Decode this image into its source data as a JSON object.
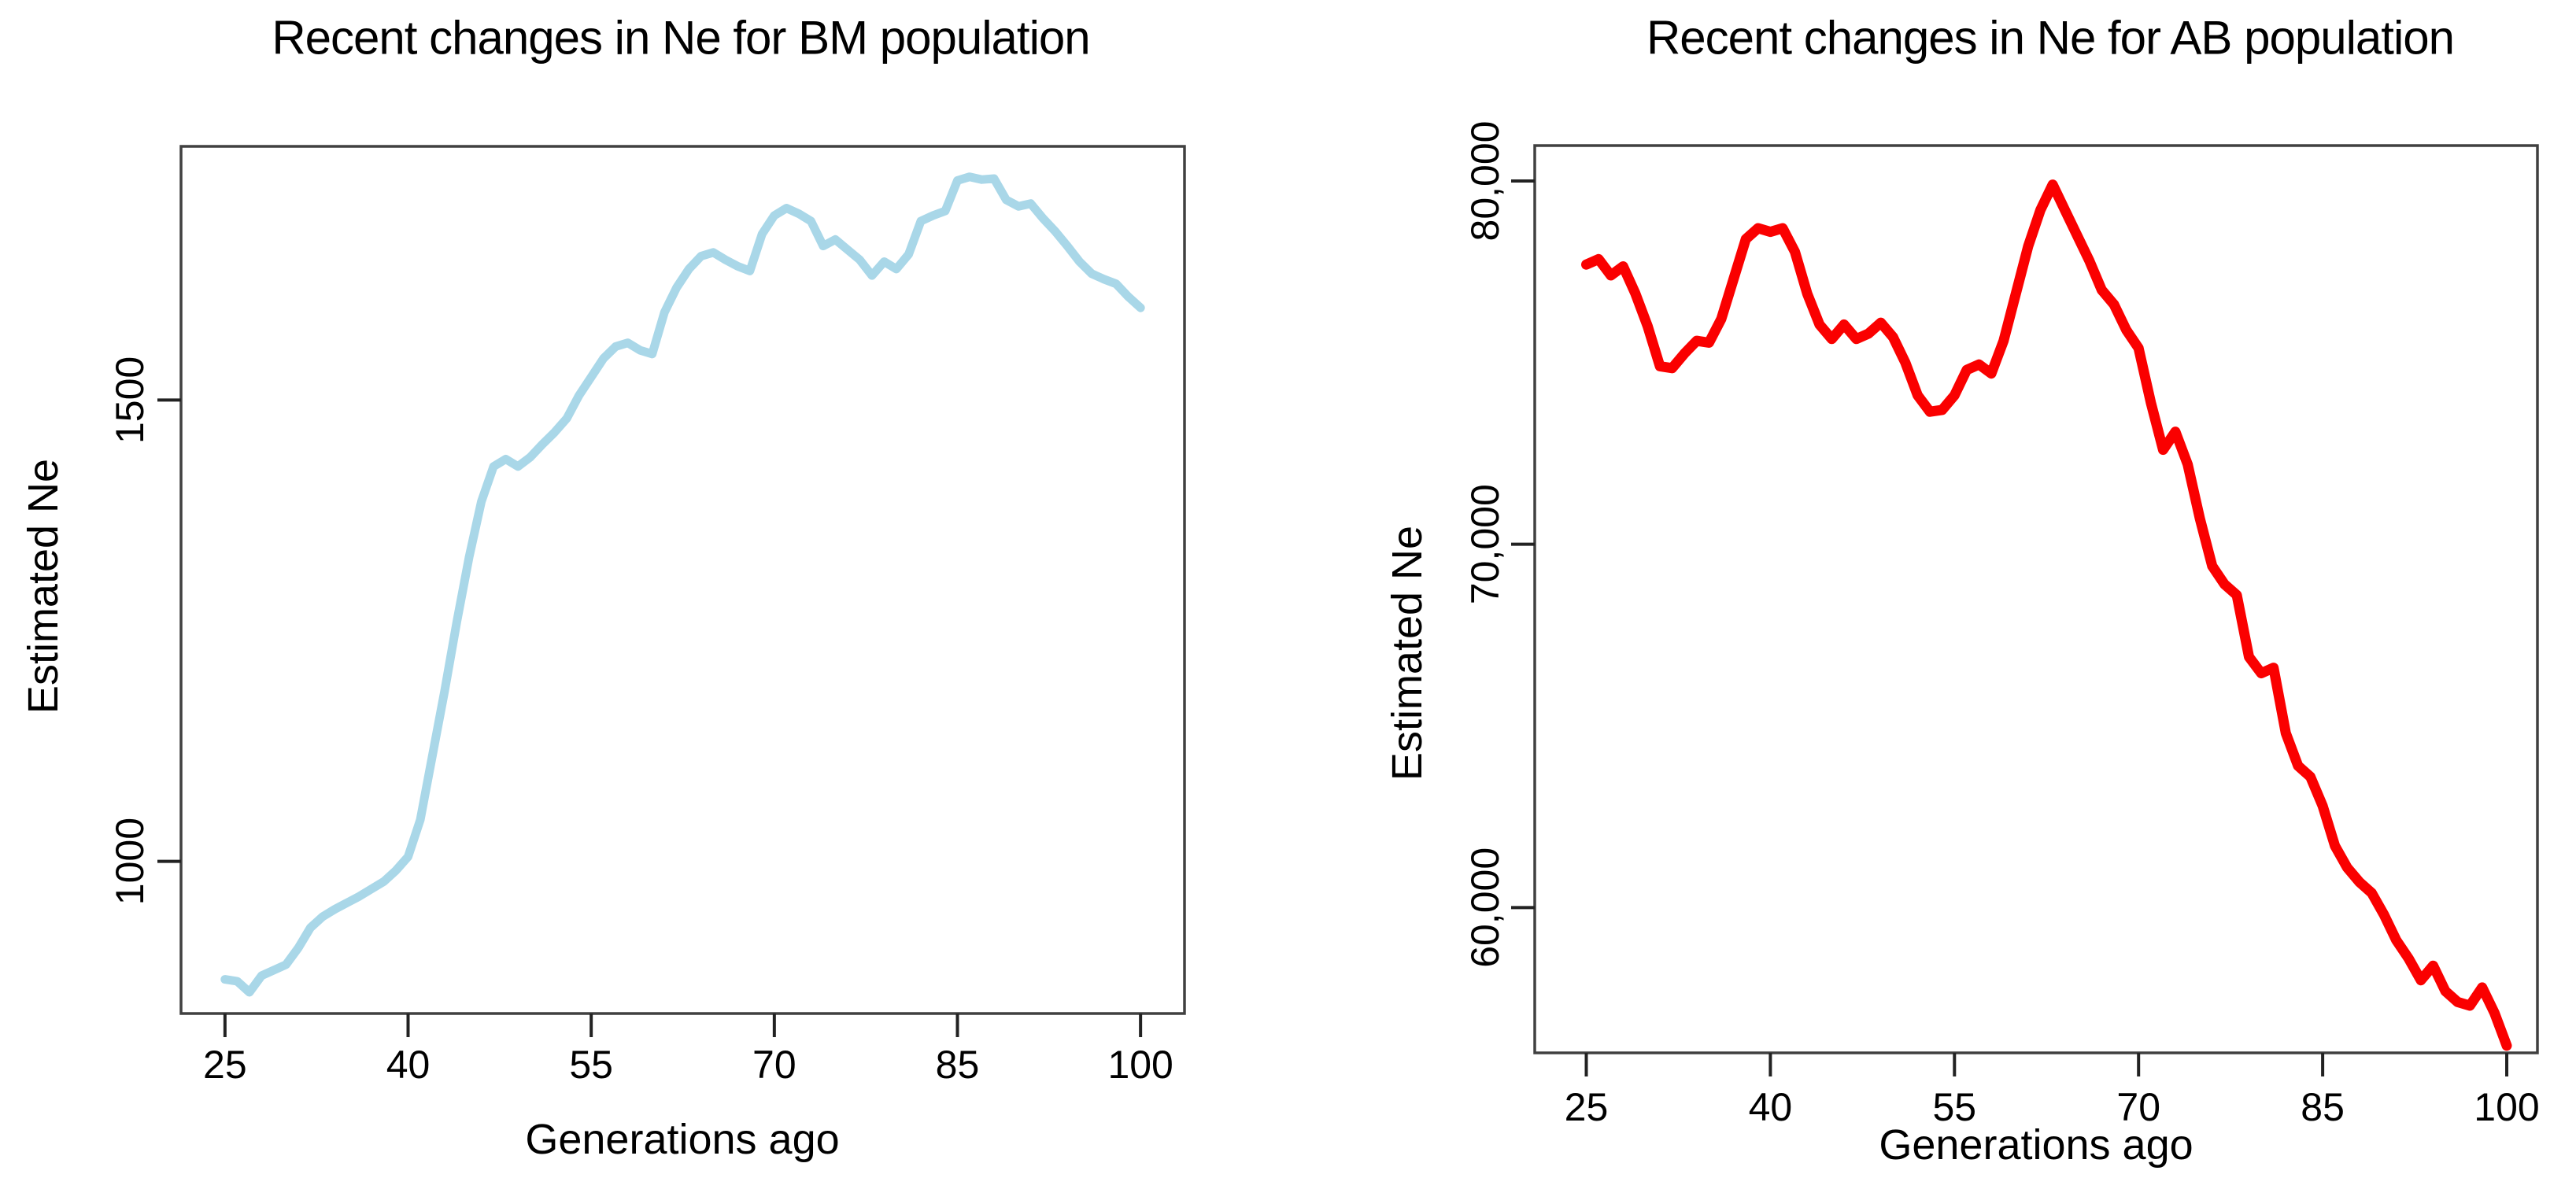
{
  "page": {
    "background": "#ffffff",
    "text_color": "#000000"
  },
  "chart_data": [
    {
      "id": "bm",
      "type": "line",
      "title": "Recent changes in Ne for BM population",
      "xlabel": "Generations ago",
      "ylabel": "Estimated Ne",
      "line_color": "#a9d7e8",
      "line_width": 11,
      "frame_color": "#404040",
      "tick_color": "#222222",
      "grid": false,
      "legend": null,
      "x_ticks": [
        25,
        40,
        55,
        70,
        85,
        100
      ],
      "x_tick_labels": [
        "25",
        "40",
        "55",
        "70",
        "85",
        "100"
      ],
      "y_ticks": [
        1000,
        1500
      ],
      "y_tick_labels": [
        "1000",
        "1500"
      ],
      "xlim": [
        21.4,
        103.6
      ],
      "ylim": [
        835,
        1775
      ],
      "x": [
        25,
        26,
        27,
        28,
        29,
        30,
        31,
        32,
        33,
        34,
        35,
        36,
        37,
        38,
        39,
        40,
        41,
        42,
        43,
        44,
        45,
        46,
        47,
        48,
        49,
        50,
        51,
        52,
        53,
        54,
        55,
        56,
        57,
        58,
        59,
        60,
        61,
        62,
        63,
        64,
        65,
        66,
        67,
        68,
        69,
        70,
        71,
        72,
        73,
        74,
        75,
        76,
        77,
        78,
        79,
        80,
        81,
        82,
        83,
        84,
        85,
        86,
        87,
        88,
        89,
        90,
        91,
        92,
        93,
        94,
        95,
        96,
        97,
        98,
        99,
        100
      ],
      "y": [
        872,
        870,
        858,
        876,
        882,
        888,
        906,
        928,
        940,
        948,
        955,
        962,
        970,
        978,
        990,
        1005,
        1045,
        1115,
        1185,
        1260,
        1330,
        1390,
        1428,
        1436,
        1428,
        1438,
        1452,
        1465,
        1480,
        1505,
        1525,
        1545,
        1558,
        1562,
        1554,
        1550,
        1595,
        1622,
        1642,
        1656,
        1660,
        1652,
        1645,
        1640,
        1680,
        1700,
        1708,
        1702,
        1694,
        1667,
        1674,
        1663,
        1652,
        1635,
        1650,
        1642,
        1658,
        1694,
        1700,
        1705,
        1738,
        1742,
        1739,
        1740,
        1717,
        1710,
        1713,
        1697,
        1683,
        1667,
        1650,
        1637,
        1631,
        1626,
        1612,
        1600
      ]
    },
    {
      "id": "ab",
      "type": "line",
      "title": "Recent changes in Ne for AB population",
      "xlabel": "Generations ago",
      "ylabel": "Estimated Ne",
      "line_color": "#fa0000",
      "line_width": 13,
      "frame_color": "#404040",
      "tick_color": "#222222",
      "grid": false,
      "legend": null,
      "x_ticks": [
        25,
        40,
        55,
        70,
        85,
        100
      ],
      "x_tick_labels": [
        "25",
        "40",
        "55",
        "70",
        "85",
        "100"
      ],
      "y_ticks": [
        60000,
        70000,
        80000
      ],
      "y_tick_labels": [
        "60,000",
        "70,000",
        "80,000"
      ],
      "xlim": [
        20.8,
        102.5
      ],
      "ylim": [
        56000,
        80975
      ],
      "x": [
        25,
        26,
        27,
        28,
        29,
        30,
        31,
        32,
        33,
        34,
        35,
        36,
        37,
        38,
        39,
        40,
        41,
        42,
        43,
        44,
        45,
        46,
        47,
        48,
        49,
        50,
        51,
        52,
        53,
        54,
        55,
        56,
        57,
        58,
        59,
        60,
        61,
        62,
        63,
        64,
        65,
        66,
        67,
        68,
        69,
        70,
        71,
        72,
        73,
        74,
        75,
        76,
        77,
        78,
        79,
        80,
        81,
        82,
        83,
        84,
        85,
        86,
        87,
        88,
        89,
        90,
        91,
        92,
        93,
        94,
        95,
        96,
        97,
        98,
        99,
        100
      ],
      "y": [
        77700,
        77850,
        77400,
        77650,
        76900,
        76000,
        74900,
        74850,
        75250,
        75600,
        75550,
        76200,
        77300,
        78400,
        78700,
        78600,
        78700,
        78050,
        76900,
        76050,
        75650,
        76050,
        75650,
        75800,
        76100,
        75700,
        75000,
        74100,
        73650,
        73700,
        74100,
        74800,
        74950,
        74700,
        75600,
        76900,
        78200,
        79200,
        79900,
        79200,
        78500,
        77800,
        77000,
        76600,
        75900,
        75400,
        73900,
        72600,
        73100,
        72200,
        70700,
        69400,
        68900,
        68600,
        66900,
        66450,
        66600,
        64800,
        63900,
        63600,
        62800,
        61700,
        61100,
        60700,
        60400,
        59800,
        59100,
        58600,
        58000,
        58400,
        57700,
        57400,
        57300,
        57800,
        57100,
        56200
      ]
    }
  ]
}
